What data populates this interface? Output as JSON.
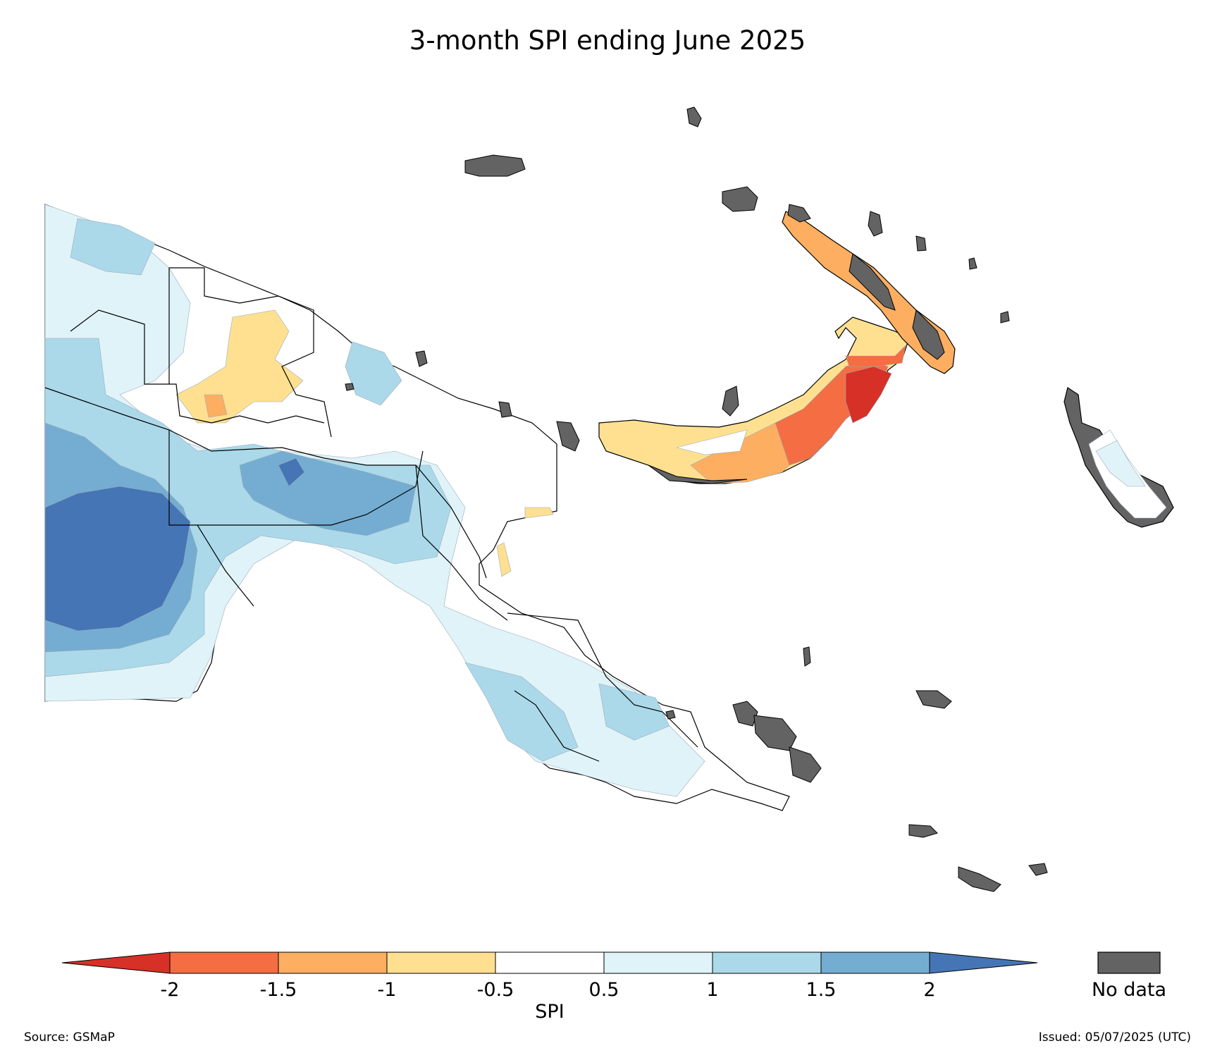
{
  "title": "3-month SPI ending June 2025",
  "colorbar": {
    "label": "SPI",
    "ticks": [
      "-2",
      "-1.5",
      "-1",
      "-0.5",
      "0.5",
      "1",
      "1.5",
      "2"
    ],
    "bins": [
      {
        "from": null,
        "to": -2,
        "color": "#d73027"
      },
      {
        "from": -2,
        "to": -1.5,
        "color": "#f46d43"
      },
      {
        "from": -1.5,
        "to": -1,
        "color": "#fdae61"
      },
      {
        "from": -1,
        "to": -0.5,
        "color": "#fee090"
      },
      {
        "from": -0.5,
        "to": 0.5,
        "color": "#ffffff"
      },
      {
        "from": 0.5,
        "to": 1,
        "color": "#e0f3f8"
      },
      {
        "from": 1,
        "to": 1.5,
        "color": "#abd9e9"
      },
      {
        "from": 1.5,
        "to": 2,
        "color": "#74add1"
      },
      {
        "from": 2,
        "to": null,
        "color": "#4575b4"
      }
    ]
  },
  "nodata": {
    "label": "No data",
    "color": "#636363"
  },
  "source": "Source: GSMaP",
  "issued": "Issued: 05/07/2025 (UTC)"
}
